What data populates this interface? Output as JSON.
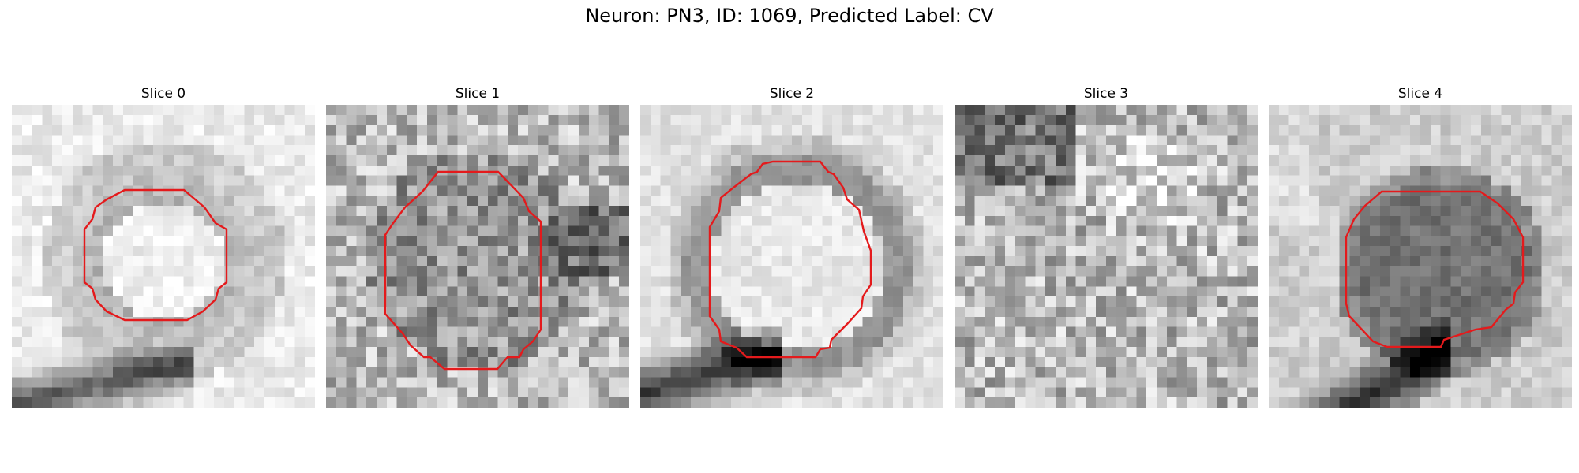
{
  "figure": {
    "title": "Neuron: PN3, ID: 1069, Predicted Label: CV"
  },
  "contour_color": "#e41a1c",
  "slices": [
    {
      "label": "Slice 0"
    },
    {
      "label": "Slice 1"
    },
    {
      "label": "Slice 2"
    },
    {
      "label": "Slice 3"
    },
    {
      "label": "Slice 4"
    }
  ]
}
